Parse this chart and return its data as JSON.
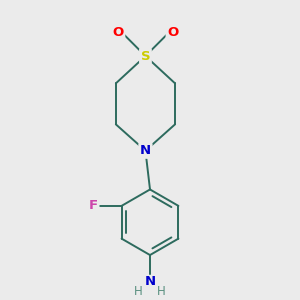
{
  "background_color": "#ebebeb",
  "bond_color": "#2d6b5e",
  "atom_colors": {
    "S": "#cccc00",
    "O": "#ff0000",
    "N": "#0000cc",
    "F": "#cc44aa",
    "NH2_N": "#0000cc",
    "H": "#5a9080"
  },
  "figsize": [
    3.0,
    3.0
  ],
  "dpi": 100
}
